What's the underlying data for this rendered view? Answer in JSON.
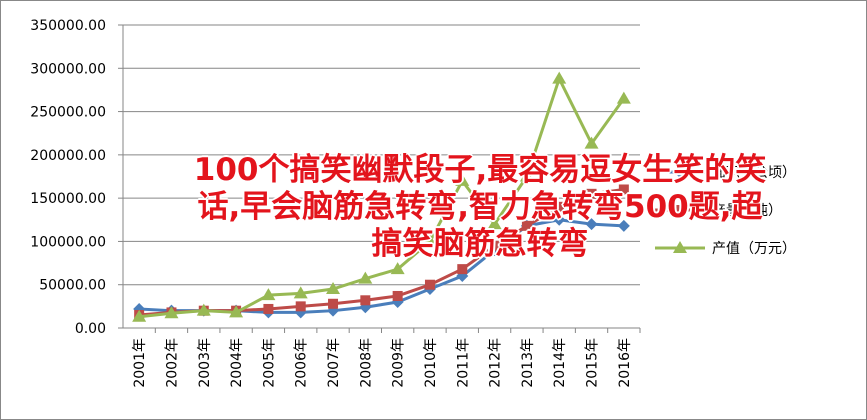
{
  "chart_data": {
    "type": "line",
    "categories": [
      "2001年",
      "2002年",
      "2003年",
      "2004年",
      "2005年",
      "2006年",
      "2007年",
      "2008年",
      "2009年",
      "2010年",
      "2011年",
      "2012年",
      "2013年",
      "2014年",
      "2015年",
      "2016年"
    ],
    "series": [
      {
        "name": "面积（公顷）",
        "color": "#4a7ebb",
        "marker": "diamond",
        "values": [
          22000,
          20000,
          20000,
          20000,
          18000,
          18000,
          20000,
          24000,
          30000,
          45000,
          60000,
          90000,
          118000,
          125000,
          120000,
          118000
        ]
      },
      {
        "name": "产量（吨）",
        "color": "#be4b48",
        "marker": "square",
        "values": [
          15000,
          18000,
          20000,
          20000,
          22000,
          25000,
          28000,
          32000,
          37000,
          50000,
          68000,
          95000,
          118000,
          140000,
          155000,
          160000
        ]
      },
      {
        "name": "产值（万元）",
        "color": "#98b954",
        "marker": "triangle",
        "values": [
          13000,
          17000,
          20000,
          18000,
          38000,
          40000,
          45000,
          57000,
          68000,
          100000,
          170000,
          120000,
          175000,
          288000,
          213000,
          265000
        ]
      }
    ],
    "ylim": [
      0,
      350000
    ],
    "yticks": [
      {
        "value": 0,
        "label": "0.00"
      },
      {
        "value": 50000,
        "label": "50000.00"
      },
      {
        "value": 100000,
        "label": "100000.00"
      },
      {
        "value": 150000,
        "label": "150000.00"
      },
      {
        "value": 200000,
        "label": "200000.00"
      },
      {
        "value": 250000,
        "label": "250000.00"
      },
      {
        "value": 300000,
        "label": "300000.00"
      },
      {
        "value": 350000,
        "label": "350000.00"
      }
    ],
    "grid": true
  },
  "overlay_text": "100个搞笑幽默段子,最容易逗女生笑的笑话,早会脑筋急转弯,智力急转弯500题,超搞笑脑筋急转弯"
}
